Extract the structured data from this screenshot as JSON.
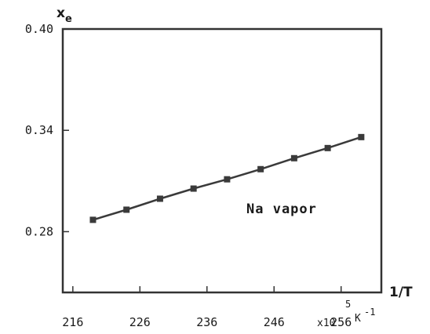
{
  "chart_data": {
    "type": "line",
    "ylabel_main": "x",
    "ylabel_sub": "e",
    "xlabel": "1/T",
    "x_unit_prefix": "x10",
    "x_unit_exponent": "5",
    "x_unit_suffix": "K",
    "x_unit_suffix_exponent": "-1",
    "annotation": "Na vapor",
    "xlim": [
      214.5,
      262
    ],
    "ylim": [
      0.244,
      0.4
    ],
    "xticks": [
      216,
      226,
      236,
      246,
      256
    ],
    "xtick_labels": [
      "216",
      "226",
      "236",
      "246",
      "256"
    ],
    "yticks": [
      0.28,
      0.34,
      0.4
    ],
    "ytick_labels": [
      "0.28",
      "0.34",
      "0.40"
    ],
    "grid": false,
    "series": [
      {
        "color": "#3a3a3a",
        "marker": "square",
        "x": [
          219,
          224,
          229,
          234,
          239,
          244,
          249,
          254,
          259
        ],
        "y": [
          0.287,
          0.293,
          0.2995,
          0.3055,
          0.311,
          0.317,
          0.3235,
          0.3295,
          0.336
        ]
      }
    ]
  }
}
